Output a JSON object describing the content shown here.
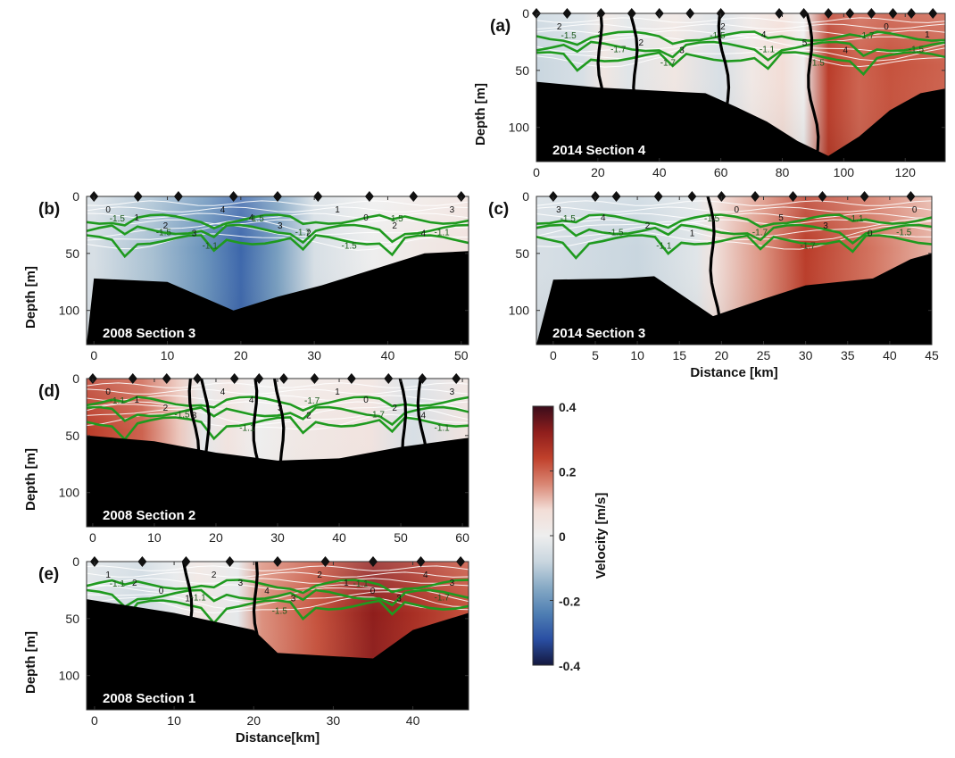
{
  "colors": {
    "frame": "#333333",
    "bathymetry": "#000000",
    "contour_green": "#1f9a1f",
    "contour_white": "#ffffff",
    "contour_black": "#000000",
    "marker": "#111111"
  },
  "colorbar": {
    "label": "Velocity [m/s]",
    "range": [
      -0.4,
      0.4
    ],
    "ticks": [
      "0.4",
      "0.2",
      "0",
      "-0.2",
      "-0.4"
    ],
    "stops": [
      "#3a0c1b",
      "#8f1e1c",
      "#c0402b",
      "#d98673",
      "#f2ddd6",
      "#eeeeee",
      "#c9d6df",
      "#87aac5",
      "#4f7fb3",
      "#2a4fa3",
      "#14183f"
    ]
  },
  "chart_data": [
    {
      "type": "heatmap",
      "panel_label": "(a)",
      "section_label": "2014 Section 4",
      "ylabel": "Depth [m]",
      "xlabel": "",
      "xlim": [
        0,
        133
      ],
      "ylim": [
        0,
        130
      ],
      "x_ticks": [
        0,
        20,
        40,
        60,
        80,
        100,
        120
      ],
      "y_ticks": [
        0,
        50,
        100
      ],
      "bg_stops": [
        {
          "x": 0,
          "v": -0.08
        },
        {
          "x": 15,
          "v": -0.05
        },
        {
          "x": 22,
          "v": 0.04
        },
        {
          "x": 30,
          "v": -0.03
        },
        {
          "x": 45,
          "v": 0.04
        },
        {
          "x": 60,
          "v": -0.05
        },
        {
          "x": 70,
          "v": 0.03
        },
        {
          "x": 80,
          "v": 0.08
        },
        {
          "x": 87,
          "v": 0.0
        },
        {
          "x": 95,
          "v": 0.25
        },
        {
          "x": 105,
          "v": 0.2
        },
        {
          "x": 115,
          "v": 0.22
        },
        {
          "x": 133,
          "v": 0.2
        }
      ],
      "stations": [
        0,
        10,
        21,
        31,
        40,
        50,
        60,
        79,
        87,
        95,
        102,
        109,
        116,
        122,
        129
      ],
      "bathymetry": [
        [
          0,
          60
        ],
        [
          20,
          65
        ],
        [
          40,
          68
        ],
        [
          55,
          70
        ],
        [
          65,
          82
        ],
        [
          75,
          95
        ],
        [
          85,
          112
        ],
        [
          95,
          125
        ],
        [
          105,
          108
        ],
        [
          115,
          85
        ],
        [
          125,
          70
        ],
        [
          133,
          66
        ]
      ],
      "zero_contours_x": [
        20,
        31,
        60,
        88
      ],
      "green_contour_labels": [
        "-1.5",
        "-1.7",
        "-1.7",
        "-1.5",
        "-1.1",
        "-1.5",
        "-1.7",
        "-1.5"
      ],
      "white_contour_labels": [
        "2",
        "3",
        "2",
        "3",
        "2",
        "4",
        "5",
        "4",
        "0",
        "1"
      ]
    },
    {
      "type": "heatmap",
      "panel_label": "(b)",
      "section_label": "2008 Section 3",
      "ylabel": "Depth [m]",
      "xlabel": "",
      "xlim": [
        -1,
        51
      ],
      "ylim": [
        0,
        130
      ],
      "x_ticks": [
        0,
        10,
        20,
        30,
        40,
        50
      ],
      "y_ticks": [
        0,
        50,
        100
      ],
      "bg_stops": [
        {
          "x": 0,
          "v": -0.05
        },
        {
          "x": 8,
          "v": -0.12
        },
        {
          "x": 15,
          "v": -0.2
        },
        {
          "x": 20,
          "v": -0.28
        },
        {
          "x": 25,
          "v": -0.18
        },
        {
          "x": 30,
          "v": -0.05
        },
        {
          "x": 38,
          "v": 0.0
        },
        {
          "x": 45,
          "v": 0.03
        },
        {
          "x": 51,
          "v": 0.05
        }
      ],
      "stations": [
        0,
        6,
        11.5,
        19,
        25,
        30.5,
        37.5,
        43.5,
        50
      ],
      "bathymetry": [
        [
          0,
          72
        ],
        [
          10,
          75
        ],
        [
          19,
          100
        ],
        [
          25,
          88
        ],
        [
          31,
          78
        ],
        [
          40,
          60
        ],
        [
          45,
          50
        ],
        [
          51,
          48
        ]
      ],
      "zero_contours_x": [],
      "green_contour_labels": [
        "-1.5",
        "-1.5",
        "-1.1",
        "-1.5",
        "-1.7",
        "-1.5",
        "-1.5",
        "-1.1"
      ],
      "white_contour_labels": [
        "0",
        "1",
        "2",
        "3",
        "4",
        "4",
        "3",
        "2",
        "1",
        "0",
        "2",
        "4",
        "3"
      ]
    },
    {
      "type": "heatmap",
      "panel_label": "(c)",
      "section_label": "2014 Section 3",
      "ylabel": "",
      "xlabel": "Distance [km]",
      "xlim": [
        -2,
        45
      ],
      "ylim": [
        0,
        130
      ],
      "x_ticks": [
        0,
        5,
        10,
        15,
        20,
        25,
        30,
        35,
        40,
        45
      ],
      "y_ticks": [
        0,
        50,
        100
      ],
      "bg_stops": [
        {
          "x": -2,
          "v": -0.05
        },
        {
          "x": 10,
          "v": -0.08
        },
        {
          "x": 17,
          "v": -0.03
        },
        {
          "x": 19,
          "v": 0.05
        },
        {
          "x": 25,
          "v": 0.15
        },
        {
          "x": 30,
          "v": 0.25
        },
        {
          "x": 38,
          "v": 0.18
        },
        {
          "x": 45,
          "v": 0.12
        }
      ],
      "stations": [
        0,
        5,
        7.5,
        12.5,
        16.5,
        20,
        24,
        28.5,
        32,
        37,
        42.5
      ],
      "bathymetry": [
        [
          0,
          73
        ],
        [
          8,
          72
        ],
        [
          12,
          70
        ],
        [
          19,
          105
        ],
        [
          25,
          90
        ],
        [
          30,
          78
        ],
        [
          38,
          72
        ],
        [
          42.5,
          55
        ],
        [
          45,
          50
        ]
      ],
      "zero_contours_x": [
        18.5
      ],
      "green_contour_labels": [
        "-1.5",
        "-1.5",
        "-1.1",
        "-1.5",
        "-1.7",
        "-1.7",
        "-1.1",
        "-1.5"
      ],
      "white_contour_labels": [
        "3",
        "4",
        "2",
        "1",
        "0",
        "5",
        "3",
        "0",
        "0"
      ]
    },
    {
      "type": "heatmap",
      "panel_label": "(d)",
      "section_label": "2008 Section 2",
      "ylabel": "Depth [m]",
      "xlabel": "",
      "xlim": [
        -1,
        61
      ],
      "ylim": [
        0,
        130
      ],
      "x_ticks": [
        0,
        10,
        20,
        30,
        40,
        50,
        60
      ],
      "y_ticks": [
        0,
        50,
        100
      ],
      "bg_stops": [
        {
          "x": -1,
          "v": 0.25
        },
        {
          "x": 8,
          "v": 0.2
        },
        {
          "x": 14,
          "v": 0.1
        },
        {
          "x": 18,
          "v": -0.02
        },
        {
          "x": 22,
          "v": 0.05
        },
        {
          "x": 27,
          "v": 0.0
        },
        {
          "x": 33,
          "v": 0.03
        },
        {
          "x": 45,
          "v": 0.05
        },
        {
          "x": 52,
          "v": -0.05
        },
        {
          "x": 61,
          "v": 0.05
        }
      ],
      "stations": [
        0,
        6.5,
        12,
        17,
        23,
        27,
        31,
        36,
        42,
        48,
        53.5,
        59
      ],
      "bathymetry": [
        [
          -1,
          50
        ],
        [
          10,
          55
        ],
        [
          20,
          65
        ],
        [
          30,
          72
        ],
        [
          40,
          70
        ],
        [
          50,
          60
        ],
        [
          61,
          52
        ]
      ],
      "zero_contours_x": [
        16,
        18,
        26,
        30,
        50,
        53
      ],
      "green_contour_labels": [
        "-1.1",
        "-1.5",
        "-1.1",
        "-1.7",
        "-1.7",
        "-1.1"
      ],
      "white_contour_labels": [
        "0",
        "1",
        "2",
        "3",
        "4",
        "4",
        "3",
        "2",
        "1",
        "0",
        "2",
        "4",
        "3"
      ]
    },
    {
      "type": "heatmap",
      "panel_label": "(e)",
      "section_label": "2008 Section 1",
      "ylabel": "Depth [m]",
      "xlabel": "Distance[km]",
      "xlim": [
        -1,
        47
      ],
      "ylim": [
        0,
        130
      ],
      "x_ticks": [
        0,
        10,
        20,
        30,
        40
      ],
      "y_ticks": [
        0,
        50,
        100
      ],
      "bg_stops": [
        {
          "x": -1,
          "v": -0.03
        },
        {
          "x": 6,
          "v": -0.07
        },
        {
          "x": 10,
          "v": -0.02
        },
        {
          "x": 13,
          "v": 0.04
        },
        {
          "x": 18,
          "v": -0.02
        },
        {
          "x": 21,
          "v": 0.15
        },
        {
          "x": 28,
          "v": 0.22
        },
        {
          "x": 35,
          "v": 0.32
        },
        {
          "x": 40,
          "v": 0.28
        },
        {
          "x": 47,
          "v": 0.22
        }
      ],
      "stations": [
        0,
        6,
        11.5,
        17,
        23,
        29,
        35,
        41,
        46
      ],
      "bathymetry": [
        [
          -1,
          33
        ],
        [
          10,
          45
        ],
        [
          20,
          60
        ],
        [
          23,
          80
        ],
        [
          30,
          83
        ],
        [
          35,
          85
        ],
        [
          40,
          60
        ],
        [
          47,
          45
        ]
      ],
      "zero_contours_x": [
        11.5,
        20
      ],
      "green_contour_labels": [
        "-1.1",
        "-1.1",
        "-1.5",
        "-1.1",
        "-1.7"
      ],
      "white_contour_labels": [
        "1",
        "2",
        "0",
        "1",
        "2",
        "3",
        "4",
        "3",
        "2",
        "1",
        "0",
        "3",
        "4",
        "3"
      ]
    }
  ]
}
